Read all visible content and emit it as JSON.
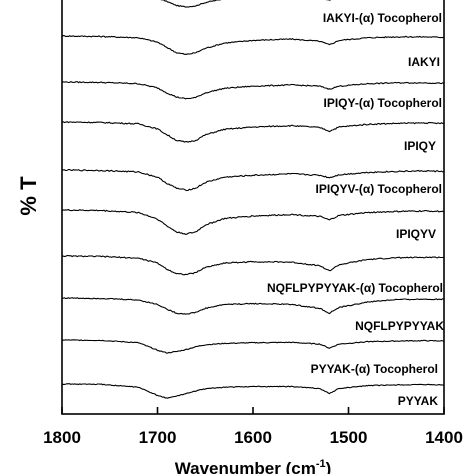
{
  "chart_data": {
    "type": "line",
    "xlabel": "Wavenumber (cm",
    "xlabel_superscript": "-1",
    "xlabel_suffix": ")",
    "ylabel": "% T",
    "xlim": [
      1800,
      1400
    ],
    "x_reversed": true,
    "xticks": [
      {
        "value": 1800,
        "label": "1800"
      },
      {
        "value": 1700,
        "label": "1700"
      },
      {
        "value": 1600,
        "label": "1600"
      },
      {
        "value": 1500,
        "label": "1500"
      },
      {
        "value": 1400,
        "label": "1400"
      }
    ],
    "y_ticks_shown": false,
    "series": [
      {
        "name": "IAKYI-(α) Tocopherol",
        "x": [
          1800,
          1760,
          1720,
          1700,
          1690,
          1680,
          1670,
          1660,
          1650,
          1630,
          1600,
          1560,
          1530,
          1520,
          1510,
          1480,
          1450,
          1420,
          1400
        ],
        "y": [
          1.0,
          0.99,
          0.97,
          0.88,
          0.78,
          0.66,
          0.62,
          0.65,
          0.75,
          0.86,
          0.9,
          0.94,
          0.9,
          0.82,
          0.9,
          0.96,
          0.98,
          0.98,
          0.97
        ]
      },
      {
        "name": "IAKYI",
        "x": [
          1800,
          1760,
          1720,
          1700,
          1690,
          1680,
          1670,
          1660,
          1650,
          1630,
          1600,
          1560,
          1530,
          1520,
          1510,
          1480,
          1450,
          1420,
          1400
        ],
        "y": [
          1.0,
          0.99,
          0.96,
          0.86,
          0.74,
          0.62,
          0.58,
          0.62,
          0.72,
          0.84,
          0.9,
          0.93,
          0.88,
          0.8,
          0.9,
          0.96,
          0.98,
          0.98,
          0.97
        ]
      },
      {
        "name": "IPIQY-(α) Tocopherol",
        "x": [
          1800,
          1760,
          1720,
          1700,
          1690,
          1680,
          1670,
          1660,
          1650,
          1630,
          1600,
          1560,
          1530,
          1520,
          1510,
          1480,
          1450,
          1420,
          1400
        ],
        "y": [
          1.0,
          0.99,
          0.96,
          0.86,
          0.74,
          0.64,
          0.6,
          0.63,
          0.74,
          0.85,
          0.9,
          0.93,
          0.9,
          0.83,
          0.9,
          0.96,
          0.98,
          0.98,
          0.97
        ]
      },
      {
        "name": "IPIQY",
        "x": [
          1800,
          1760,
          1720,
          1700,
          1690,
          1680,
          1670,
          1660,
          1650,
          1630,
          1600,
          1560,
          1530,
          1520,
          1510,
          1480,
          1450,
          1420,
          1400
        ],
        "y": [
          1.0,
          0.99,
          0.96,
          0.85,
          0.72,
          0.6,
          0.56,
          0.6,
          0.72,
          0.84,
          0.89,
          0.92,
          0.88,
          0.8,
          0.89,
          0.95,
          0.97,
          0.98,
          0.97
        ]
      },
      {
        "name": "IPIQYV-(α) Tocopherol",
        "x": [
          1800,
          1760,
          1720,
          1700,
          1690,
          1680,
          1670,
          1660,
          1650,
          1630,
          1600,
          1560,
          1530,
          1520,
          1510,
          1480,
          1450,
          1420,
          1400
        ],
        "y": [
          1.0,
          0.99,
          0.96,
          0.85,
          0.72,
          0.62,
          0.58,
          0.62,
          0.74,
          0.85,
          0.89,
          0.92,
          0.89,
          0.84,
          0.9,
          0.95,
          0.97,
          0.98,
          0.97
        ]
      },
      {
        "name": "IPIQYV",
        "x": [
          1800,
          1760,
          1720,
          1700,
          1690,
          1680,
          1670,
          1660,
          1650,
          1630,
          1600,
          1560,
          1530,
          1520,
          1510,
          1480,
          1450,
          1420,
          1400
        ],
        "y": [
          1.0,
          0.99,
          0.95,
          0.82,
          0.68,
          0.56,
          0.52,
          0.56,
          0.7,
          0.83,
          0.88,
          0.91,
          0.87,
          0.8,
          0.89,
          0.95,
          0.97,
          0.98,
          0.97
        ]
      },
      {
        "name": "NQFLPYPYYAK-(α) Tocopherol",
        "x": [
          1800,
          1760,
          1720,
          1700,
          1690,
          1680,
          1670,
          1660,
          1650,
          1630,
          1600,
          1560,
          1530,
          1520,
          1510,
          1480,
          1450,
          1420,
          1400
        ],
        "y": [
          1.0,
          0.99,
          0.95,
          0.84,
          0.7,
          0.6,
          0.58,
          0.62,
          0.74,
          0.84,
          0.87,
          0.86,
          0.78,
          0.66,
          0.8,
          0.92,
          0.96,
          0.97,
          0.97
        ]
      },
      {
        "name": "NQFLPYPYYAK",
        "x": [
          1800,
          1760,
          1720,
          1700,
          1690,
          1680,
          1670,
          1660,
          1650,
          1630,
          1600,
          1560,
          1530,
          1520,
          1510,
          1480,
          1450,
          1420,
          1400
        ],
        "y": [
          1.0,
          0.99,
          0.95,
          0.84,
          0.72,
          0.62,
          0.6,
          0.64,
          0.74,
          0.84,
          0.86,
          0.84,
          0.74,
          0.62,
          0.76,
          0.9,
          0.96,
          0.97,
          0.97
        ]
      },
      {
        "name": "PYYAK-(α) Tocopherol",
        "x": [
          1800,
          1760,
          1720,
          1700,
          1690,
          1680,
          1670,
          1660,
          1650,
          1630,
          1600,
          1560,
          1530,
          1520,
          1510,
          1480,
          1450,
          1420,
          1400
        ],
        "y": [
          1.0,
          0.99,
          0.92,
          0.7,
          0.62,
          0.66,
          0.72,
          0.8,
          0.86,
          0.9,
          0.92,
          0.93,
          0.88,
          0.76,
          0.88,
          0.95,
          0.97,
          0.98,
          0.97
        ]
      },
      {
        "name": "PYYAK",
        "x": [
          1800,
          1760,
          1720,
          1700,
          1690,
          1680,
          1670,
          1660,
          1650,
          1630,
          1600,
          1560,
          1530,
          1520,
          1510,
          1480,
          1450,
          1420,
          1400
        ],
        "y": [
          1.0,
          0.99,
          0.9,
          0.64,
          0.56,
          0.62,
          0.7,
          0.78,
          0.85,
          0.9,
          0.92,
          0.92,
          0.86,
          0.7,
          0.86,
          0.95,
          0.97,
          0.98,
          0.97
        ]
      }
    ]
  }
}
